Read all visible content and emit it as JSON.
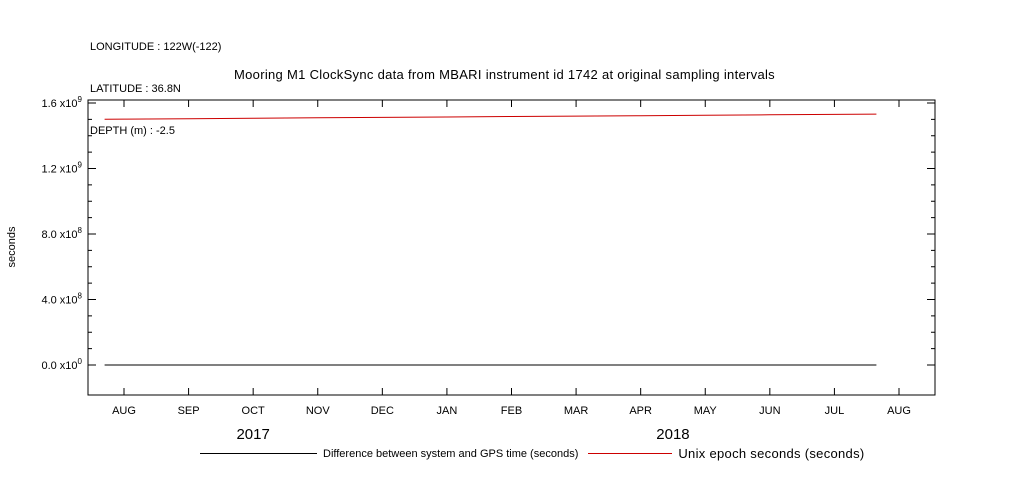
{
  "header": {
    "longitude": "LONGITUDE : 122W(-122)",
    "latitude": "LATITUDE : 36.8N",
    "depth": "DEPTH (m) : -2.5"
  },
  "chart_data": {
    "type": "line",
    "title": "Mooring M1 ClockSync data from MBARI instrument id 1742 at original sampling intervals",
    "xlabel": "",
    "ylabel": "seconds",
    "ylim": [
      0,
      1600000000
    ],
    "grid": false,
    "legend_position": "bottom",
    "xticks": [
      "AUG",
      "SEP",
      "OCT",
      "NOV",
      "DEC",
      "JAN",
      "FEB",
      "MAR",
      "APR",
      "MAY",
      "JUN",
      "JUL",
      "AUG"
    ],
    "year_labels": [
      {
        "label": "2017",
        "pos": 2.0
      },
      {
        "label": "2018",
        "pos": 8.5
      }
    ],
    "yticks": [
      {
        "v": 0,
        "coef": "0.0",
        "exp": "0"
      },
      {
        "v": 400000000,
        "coef": "4.0",
        "exp": "8"
      },
      {
        "v": 800000000,
        "coef": "8.0",
        "exp": "8"
      },
      {
        "v": 1200000000,
        "coef": "1.2",
        "exp": "9"
      },
      {
        "v": 1600000000,
        "coef": "1.6",
        "exp": "9"
      }
    ],
    "series": [
      {
        "name": "Difference between system and GPS time (seconds)",
        "color": "#000000",
        "x": [
          -0.3,
          11.65
        ],
        "values": [
          0,
          0
        ]
      },
      {
        "name": "Unix epoch seconds (seconds)",
        "color": "#cc0000",
        "x": [
          -0.3,
          0,
          1,
          2,
          3,
          4,
          5,
          6,
          7,
          8,
          9,
          10,
          11,
          11.65
        ],
        "values": [
          1500854400,
          1501545600,
          1504224000,
          1506816000,
          1509494400,
          1512086400,
          1514764800,
          1517443200,
          1519862400,
          1522540800,
          1525132800,
          1527811200,
          1530403200,
          1532016000
        ]
      }
    ]
  }
}
